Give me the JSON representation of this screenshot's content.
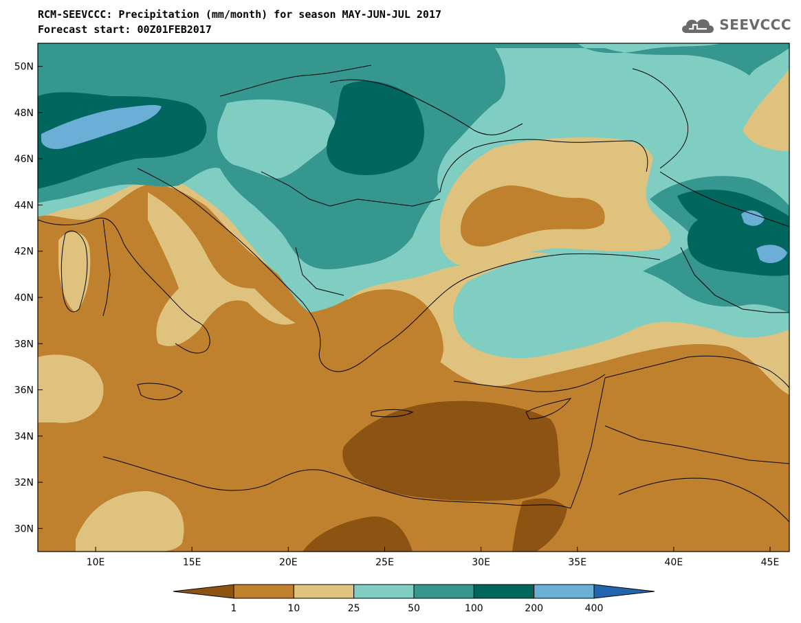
{
  "header": {
    "title": "RCM-SEEVCCC: Precipitation (mm/month) for season MAY-JUN-JUL 2017",
    "subtitle": "Forecast start: 00Z01FEB2017",
    "logo_text": "SEEVCCC"
  },
  "map": {
    "lon_range": [
      7,
      46
    ],
    "lat_range": [
      29,
      51
    ],
    "lon_ticks": [
      "10E",
      "15E",
      "20E",
      "25E",
      "30E",
      "35E",
      "40E",
      "45E"
    ],
    "lat_ticks": [
      "30N",
      "32N",
      "34N",
      "36N",
      "38N",
      "40N",
      "42N",
      "44N",
      "46N",
      "48N",
      "50N"
    ],
    "palette": {
      "lt1": "#8c5312",
      "b1_10": "#bf812d",
      "b10_25": "#dfc27d",
      "b25_50": "#80cdc1",
      "b50_100": "#35978f",
      "b100_200": "#01665e",
      "b200_400": "#6baed6",
      "gt400": "#2166ac"
    }
  },
  "colorbar": {
    "labels": [
      "1",
      "10",
      "25",
      "50",
      "100",
      "200",
      "400"
    ]
  }
}
